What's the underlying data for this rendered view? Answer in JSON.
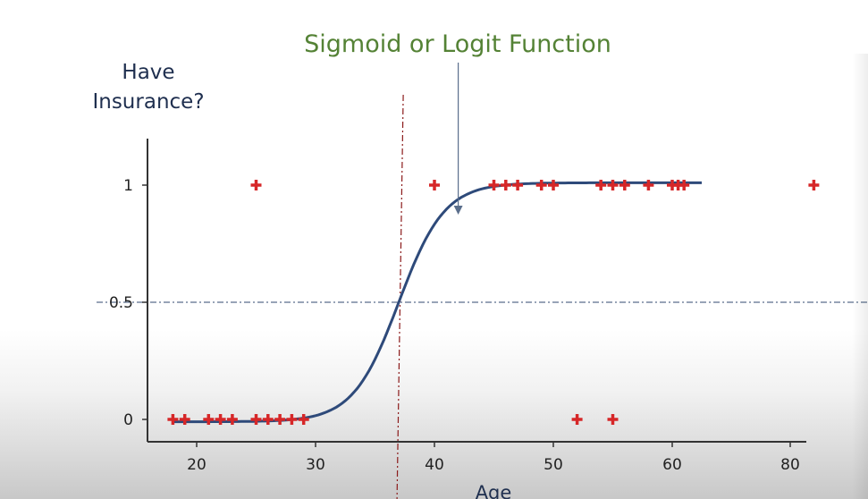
{
  "chart_data": {
    "type": "scatter",
    "title": "Sigmoid or Logit Function",
    "ylabel_lines": [
      "Have",
      "Insurance?"
    ],
    "xlabel": "Age",
    "x_ticks": [
      20,
      30,
      40,
      50,
      60,
      80
    ],
    "y_ticks": [
      {
        "value": 0,
        "label": "0"
      },
      {
        "value": 0.5,
        "label": "0.5"
      },
      {
        "value": 1,
        "label": "1"
      }
    ],
    "points": [
      {
        "x": 18,
        "y": 0
      },
      {
        "x": 19,
        "y": 0
      },
      {
        "x": 21,
        "y": 0
      },
      {
        "x": 22,
        "y": 0
      },
      {
        "x": 23,
        "y": 0
      },
      {
        "x": 25,
        "y": 0
      },
      {
        "x": 26,
        "y": 0
      },
      {
        "x": 27,
        "y": 0
      },
      {
        "x": 28,
        "y": 0
      },
      {
        "x": 29,
        "y": 0
      },
      {
        "x": 52,
        "y": 0
      },
      {
        "x": 55,
        "y": 0
      },
      {
        "x": 25,
        "y": 1
      },
      {
        "x": 40,
        "y": 1
      },
      {
        "x": 45,
        "y": 1
      },
      {
        "x": 46,
        "y": 1
      },
      {
        "x": 47,
        "y": 1
      },
      {
        "x": 49,
        "y": 1
      },
      {
        "x": 50,
        "y": 1
      },
      {
        "x": 54,
        "y": 1
      },
      {
        "x": 55,
        "y": 1
      },
      {
        "x": 56,
        "y": 1
      },
      {
        "x": 58,
        "y": 1
      },
      {
        "x": 60,
        "y": 1
      },
      {
        "x": 61,
        "y": 1
      },
      {
        "x": 62,
        "y": 1
      },
      {
        "x": 84,
        "y": 1
      }
    ],
    "sigmoid": {
      "midpoint_age": 37,
      "steepness": 0.52,
      "x_range": [
        18,
        65
      ],
      "color": "#2e4a7a"
    },
    "threshold": {
      "y": 0.5,
      "x": 37
    },
    "annotation_arrow_x": 42,
    "colors": {
      "points": "#d62728",
      "curve": "#2e4a7a",
      "axis": "#333333",
      "vline": "#8b1a1a",
      "hline": "#5a6e8c",
      "title": "#548235",
      "labels": "#1f2f4f"
    },
    "grid": false
  }
}
